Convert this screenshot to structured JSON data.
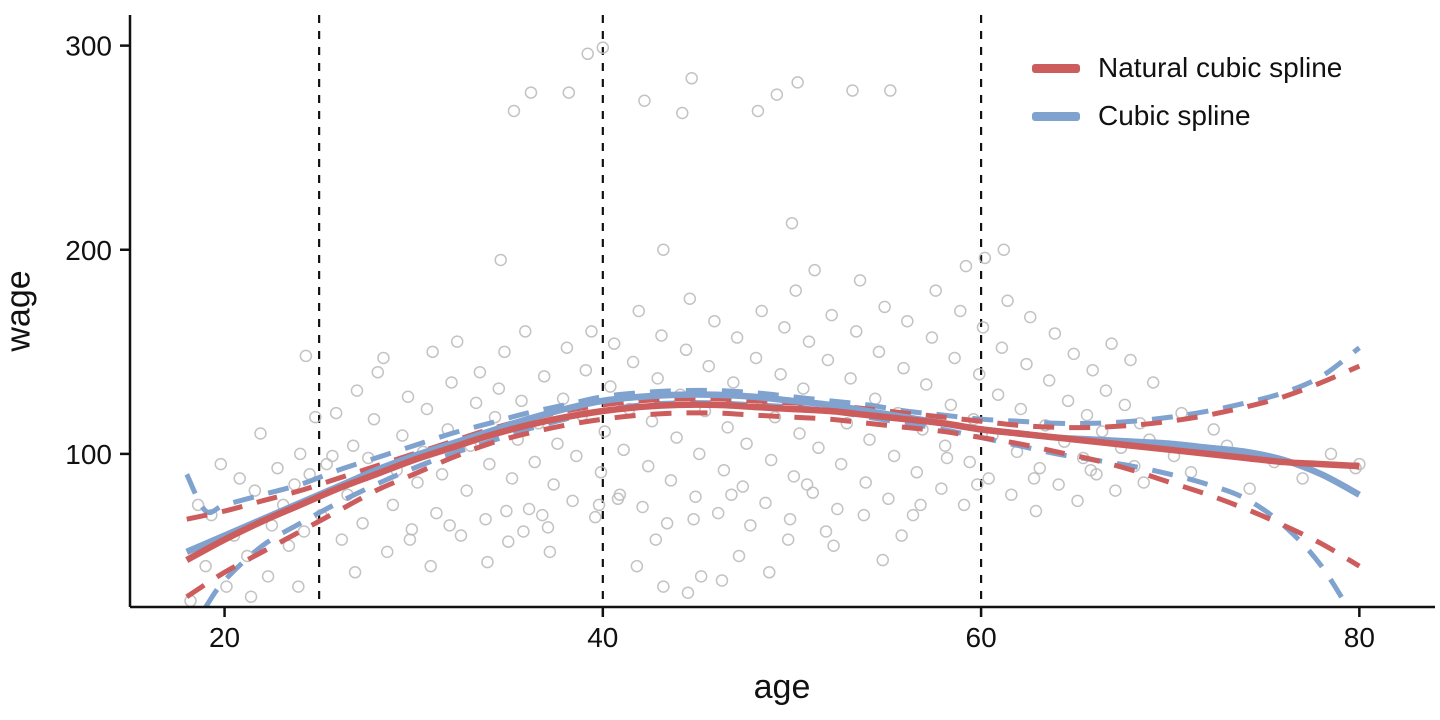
{
  "figure": {
    "background": "#ffffff"
  },
  "chart_data": {
    "type": "scatter",
    "title": "",
    "xlabel": "age",
    "ylabel": "wage",
    "x_domain": [
      15,
      84
    ],
    "y_domain": [
      25,
      315
    ],
    "x_ticks": [
      20,
      40,
      60,
      80
    ],
    "y_ticks": [
      100,
      200,
      300
    ],
    "knots": [
      25,
      40,
      60
    ],
    "grid": false,
    "legend_position": "top-right",
    "colors": {
      "natural_spline": "#CD5C5C",
      "cubic_spline": "#7FA2CF",
      "points": "#BDBDBD",
      "axis": "#111111",
      "knot_line": "#111111"
    },
    "legend": [
      {
        "label": "Natural cubic spline",
        "color": "#CD5C5C"
      },
      {
        "label": "Cubic spline",
        "color": "#7FA2CF"
      }
    ],
    "points": [
      [
        18.2,
        28
      ],
      [
        18.6,
        75
      ],
      [
        19.0,
        45
      ],
      [
        19.3,
        70
      ],
      [
        19.8,
        95
      ],
      [
        20.1,
        35
      ],
      [
        20.5,
        60
      ],
      [
        20.8,
        88
      ],
      [
        21.2,
        50
      ],
      [
        21.6,
        82
      ],
      [
        21.9,
        110
      ],
      [
        22.3,
        40
      ],
      [
        22.5,
        65
      ],
      [
        22.8,
        93
      ],
      [
        23.1,
        75
      ],
      [
        23.4,
        55
      ],
      [
        23.7,
        85
      ],
      [
        24.0,
        100
      ],
      [
        24.2,
        62
      ],
      [
        24.5,
        90
      ],
      [
        24.8,
        118
      ],
      [
        24.3,
        148
      ],
      [
        25.1,
        70
      ],
      [
        25.4,
        95
      ],
      [
        25.7,
        99
      ],
      [
        25.9,
        120
      ],
      [
        26.2,
        58
      ],
      [
        26.5,
        80
      ],
      [
        26.8,
        104
      ],
      [
        27.0,
        131
      ],
      [
        27.3,
        66
      ],
      [
        27.6,
        98
      ],
      [
        27.9,
        117
      ],
      [
        28.1,
        140
      ],
      [
        28.4,
        147
      ],
      [
        28.6,
        52
      ],
      [
        28.9,
        75
      ],
      [
        29.1,
        92
      ],
      [
        29.4,
        109
      ],
      [
        29.7,
        128
      ],
      [
        29.9,
        63
      ],
      [
        30.2,
        86
      ],
      [
        30.5,
        101
      ],
      [
        30.7,
        122
      ],
      [
        31.0,
        150
      ],
      [
        31.2,
        71
      ],
      [
        31.5,
        90
      ],
      [
        31.8,
        112
      ],
      [
        32.0,
        135
      ],
      [
        32.3,
        155
      ],
      [
        32.5,
        60
      ],
      [
        32.8,
        82
      ],
      [
        33.0,
        104
      ],
      [
        33.3,
        125
      ],
      [
        33.5,
        140
      ],
      [
        33.8,
        68
      ],
      [
        34.0,
        95
      ],
      [
        34.3,
        118
      ],
      [
        34.5,
        132
      ],
      [
        34.8,
        150
      ],
      [
        35.0,
        57
      ],
      [
        35.2,
        88
      ],
      [
        35.5,
        107
      ],
      [
        35.7,
        126
      ],
      [
        35.9,
        160
      ],
      [
        34.6,
        195
      ],
      [
        35.3,
        268
      ],
      [
        36.1,
        73
      ],
      [
        36.4,
        96
      ],
      [
        36.6,
        115
      ],
      [
        36.9,
        138
      ],
      [
        37.1,
        64
      ],
      [
        37.4,
        85
      ],
      [
        37.6,
        105
      ],
      [
        37.9,
        127
      ],
      [
        38.1,
        152
      ],
      [
        36.2,
        277
      ],
      [
        38.4,
        77
      ],
      [
        38.6,
        99
      ],
      [
        38.9,
        119
      ],
      [
        39.1,
        141
      ],
      [
        39.4,
        160
      ],
      [
        38.2,
        277
      ],
      [
        39.6,
        69
      ],
      [
        39.9,
        91
      ],
      [
        40.1,
        111
      ],
      [
        40.4,
        133
      ],
      [
        40.6,
        154
      ],
      [
        39.2,
        296
      ],
      [
        40.9,
        80
      ],
      [
        41.1,
        102
      ],
      [
        41.4,
        122
      ],
      [
        41.6,
        145
      ],
      [
        41.9,
        170
      ],
      [
        40.0,
        299
      ],
      [
        42.1,
        74
      ],
      [
        42.4,
        94
      ],
      [
        42.6,
        116
      ],
      [
        42.9,
        137
      ],
      [
        43.1,
        158
      ],
      [
        42.2,
        273
      ],
      [
        43.4,
        66
      ],
      [
        43.6,
        87
      ],
      [
        43.9,
        108
      ],
      [
        44.1,
        129
      ],
      [
        44.4,
        151
      ],
      [
        44.6,
        176
      ],
      [
        44.9,
        79
      ],
      [
        45.1,
        100
      ],
      [
        45.4,
        121
      ],
      [
        45.6,
        143
      ],
      [
        45.9,
        165
      ],
      [
        44.2,
        267
      ],
      [
        44.7,
        284
      ],
      [
        46.1,
        71
      ],
      [
        46.4,
        92
      ],
      [
        46.6,
        113
      ],
      [
        46.9,
        135
      ],
      [
        47.1,
        157
      ],
      [
        43.2,
        200
      ],
      [
        47.4,
        84
      ],
      [
        47.6,
        105
      ],
      [
        47.9,
        125
      ],
      [
        48.1,
        147
      ],
      [
        48.4,
        170
      ],
      [
        48.6,
        76
      ],
      [
        48.9,
        97
      ],
      [
        49.1,
        118
      ],
      [
        49.4,
        139
      ],
      [
        49.6,
        162
      ],
      [
        49.9,
        68
      ],
      [
        50.1,
        89
      ],
      [
        50.4,
        110
      ],
      [
        50.6,
        132
      ],
      [
        50.9,
        155
      ],
      [
        50.2,
        180
      ],
      [
        51.1,
        81
      ],
      [
        51.4,
        103
      ],
      [
        51.6,
        123
      ],
      [
        51.9,
        146
      ],
      [
        52.1,
        168
      ],
      [
        51.2,
        190
      ],
      [
        52.4,
        73
      ],
      [
        52.6,
        95
      ],
      [
        52.9,
        115
      ],
      [
        53.1,
        137
      ],
      [
        53.4,
        160
      ],
      [
        53.6,
        185
      ],
      [
        48.2,
        268
      ],
      [
        49.2,
        276
      ],
      [
        50.3,
        282
      ],
      [
        50.0,
        213
      ],
      [
        53.9,
        86
      ],
      [
        54.1,
        107
      ],
      [
        54.4,
        127
      ],
      [
        54.6,
        150
      ],
      [
        54.9,
        172
      ],
      [
        55.1,
        78
      ],
      [
        55.4,
        99
      ],
      [
        55.6,
        120
      ],
      [
        55.9,
        142
      ],
      [
        56.1,
        165
      ],
      [
        53.2,
        278
      ],
      [
        55.2,
        278
      ],
      [
        56.4,
        70
      ],
      [
        56.6,
        91
      ],
      [
        56.9,
        112
      ],
      [
        57.1,
        134
      ],
      [
        57.4,
        157
      ],
      [
        57.6,
        180
      ],
      [
        57.9,
        83
      ],
      [
        58.1,
        104
      ],
      [
        58.4,
        124
      ],
      [
        58.6,
        147
      ],
      [
        58.9,
        170
      ],
      [
        59.1,
        75
      ],
      [
        59.4,
        96
      ],
      [
        59.6,
        117
      ],
      [
        59.9,
        139
      ],
      [
        60.1,
        162
      ],
      [
        59.2,
        192
      ],
      [
        60.4,
        88
      ],
      [
        60.6,
        109
      ],
      [
        60.9,
        129
      ],
      [
        61.1,
        152
      ],
      [
        61.4,
        175
      ],
      [
        61.6,
        80
      ],
      [
        61.9,
        101
      ],
      [
        62.1,
        122
      ],
      [
        62.4,
        144
      ],
      [
        62.6,
        167
      ],
      [
        60.2,
        196
      ],
      [
        62.9,
        72
      ],
      [
        63.1,
        93
      ],
      [
        63.4,
        114
      ],
      [
        63.6,
        136
      ],
      [
        63.9,
        159
      ],
      [
        61.2,
        200
      ],
      [
        64.1,
        85
      ],
      [
        64.4,
        106
      ],
      [
        64.6,
        126
      ],
      [
        64.9,
        149
      ],
      [
        65.1,
        77
      ],
      [
        65.4,
        98
      ],
      [
        65.6,
        119
      ],
      [
        65.9,
        141
      ],
      [
        66.1,
        90
      ],
      [
        66.4,
        111
      ],
      [
        66.6,
        131
      ],
      [
        66.9,
        154
      ],
      [
        67.1,
        82
      ],
      [
        67.4,
        103
      ],
      [
        67.6,
        124
      ],
      [
        67.9,
        146
      ],
      [
        68.1,
        94
      ],
      [
        68.4,
        115
      ],
      [
        68.6,
        86
      ],
      [
        68.9,
        107
      ],
      [
        69.1,
        135
      ],
      [
        70.2,
        99
      ],
      [
        70.6,
        120
      ],
      [
        71.1,
        91
      ],
      [
        72.3,
        112
      ],
      [
        73.0,
        104
      ],
      [
        74.2,
        83
      ],
      [
        75.5,
        96
      ],
      [
        77.0,
        88
      ],
      [
        78.5,
        100
      ],
      [
        79.8,
        93
      ],
      [
        80.0,
        95
      ],
      [
        43.2,
        35
      ],
      [
        46.3,
        38
      ],
      [
        48.8,
        42
      ],
      [
        44.5,
        32
      ],
      [
        41.8,
        45
      ],
      [
        47.2,
        50
      ],
      [
        52.2,
        55
      ],
      [
        54.8,
        48
      ],
      [
        45.2,
        40
      ],
      [
        30.9,
        45
      ],
      [
        33.9,
        47
      ],
      [
        37.2,
        52
      ],
      [
        26.9,
        42
      ],
      [
        23.9,
        35
      ],
      [
        21.4,
        30
      ],
      [
        55.8,
        60
      ],
      [
        58.2,
        98
      ],
      [
        49.8,
        58
      ],
      [
        51.8,
        62
      ],
      [
        39.8,
        75
      ],
      [
        42.8,
        58
      ],
      [
        35.8,
        62
      ],
      [
        44.8,
        68
      ],
      [
        47.8,
        65
      ],
      [
        53.8,
        70
      ],
      [
        56.8,
        75
      ],
      [
        36.8,
        70
      ],
      [
        29.8,
        58
      ],
      [
        31.9,
        65
      ],
      [
        34.9,
        72
      ],
      [
        40.8,
        78
      ],
      [
        46.8,
        80
      ],
      [
        50.8,
        85
      ],
      [
        59.8,
        85
      ],
      [
        62.8,
        88
      ],
      [
        65.8,
        92
      ]
    ],
    "series": [
      {
        "name": "Cubic spline CI upper",
        "role": "ci",
        "style": "dashed",
        "color": "#7FA2CF",
        "x": [
          18,
          19,
          20,
          22,
          24,
          26,
          28,
          30,
          32,
          34,
          36,
          38,
          40,
          42,
          44,
          46,
          48,
          50,
          52,
          54,
          56,
          58,
          60,
          62,
          64,
          66,
          68,
          70,
          72,
          74,
          76,
          78,
          80
        ],
        "y": [
          90,
          72,
          75,
          80,
          85,
          92,
          98,
          104,
          110,
          115,
          120,
          124,
          128,
          130,
          131,
          131,
          130,
          128,
          126,
          124,
          121,
          119,
          117,
          116,
          115,
          115,
          116,
          118,
          121,
          125,
          130,
          138,
          152
        ]
      },
      {
        "name": "Cubic spline CI lower",
        "role": "ci",
        "style": "dashed",
        "color": "#7FA2CF",
        "x": [
          18,
          19,
          20,
          22,
          24,
          26,
          28,
          30,
          32,
          34,
          36,
          38,
          40,
          42,
          44,
          46,
          48,
          50,
          52,
          54,
          56,
          58,
          60,
          62,
          64,
          66,
          68,
          70,
          72,
          74,
          76,
          78,
          80
        ],
        "y": [
          10,
          25,
          38,
          55,
          66,
          76,
          85,
          93,
          100,
          106,
          112,
          117,
          121,
          124,
          125,
          125,
          124,
          123,
          121,
          118,
          115,
          112,
          108,
          104,
          100,
          97,
          94,
          90,
          85,
          78,
          65,
          45,
          15
        ]
      },
      {
        "name": "Natural cubic spline CI upper",
        "role": "ci",
        "style": "dashed",
        "color": "#CD5C5C",
        "x": [
          18,
          20,
          22,
          24,
          26,
          28,
          30,
          32,
          34,
          36,
          38,
          40,
          42,
          44,
          46,
          48,
          50,
          52,
          54,
          56,
          58,
          60,
          62,
          64,
          66,
          68,
          70,
          72,
          74,
          76,
          78,
          80
        ],
        "y": [
          68,
          72,
          77,
          82,
          88,
          94,
          100,
          106,
          112,
          117,
          121,
          124,
          126,
          127,
          127,
          126,
          125,
          124,
          122,
          120,
          118,
          116,
          114,
          113,
          113,
          114,
          116,
          119,
          123,
          128,
          135,
          143
        ]
      },
      {
        "name": "Natural cubic spline CI lower",
        "role": "ci",
        "style": "dashed",
        "color": "#CD5C5C",
        "x": [
          18,
          20,
          22,
          24,
          26,
          28,
          30,
          32,
          34,
          36,
          38,
          40,
          42,
          44,
          46,
          48,
          50,
          52,
          54,
          56,
          58,
          60,
          62,
          64,
          66,
          68,
          70,
          72,
          74,
          76,
          78,
          80
        ],
        "y": [
          30,
          42,
          52,
          62,
          72,
          82,
          90,
          98,
          105,
          110,
          114,
          117,
          119,
          120,
          120,
          119,
          118,
          117,
          115,
          113,
          111,
          108,
          105,
          101,
          97,
          92,
          86,
          80,
          73,
          65,
          56,
          45
        ]
      },
      {
        "name": "Cubic spline",
        "role": "fit",
        "style": "solid",
        "color": "#7FA2CF",
        "x": [
          18,
          20,
          22,
          24,
          26,
          28,
          30,
          32,
          34,
          36,
          38,
          40,
          42,
          44,
          46,
          48,
          50,
          52,
          54,
          56,
          58,
          60,
          62,
          64,
          66,
          68,
          70,
          72,
          74,
          76,
          78,
          80
        ],
        "y": [
          52,
          60,
          68,
          76,
          84,
          92,
          99,
          105,
          111,
          117,
          122,
          126,
          128,
          129,
          129,
          128,
          126,
          124,
          121,
          118,
          115,
          112,
          110,
          108,
          107,
          106,
          105,
          103,
          101,
          97,
          90,
          80
        ]
      },
      {
        "name": "Natural cubic spline",
        "role": "fit",
        "style": "solid",
        "color": "#CD5C5C",
        "x": [
          18,
          20,
          22,
          24,
          26,
          28,
          30,
          32,
          34,
          36,
          38,
          40,
          42,
          44,
          46,
          48,
          50,
          52,
          54,
          56,
          58,
          60,
          62,
          64,
          66,
          68,
          70,
          72,
          74,
          76,
          78,
          80
        ],
        "y": [
          48,
          58,
          67,
          75,
          83,
          90,
          97,
          103,
          109,
          114,
          118,
          121,
          123,
          124,
          124,
          123,
          122,
          121,
          119,
          117,
          115,
          112,
          110,
          108,
          106,
          104,
          102,
          100,
          98,
          96,
          95,
          94
        ]
      }
    ]
  }
}
